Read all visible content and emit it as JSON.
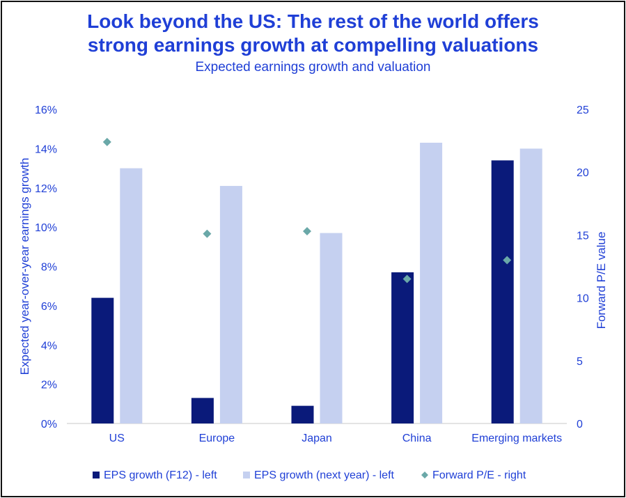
{
  "chart_data": {
    "type": "bar",
    "title_line1": "Look beyond the US: The rest of the world offers",
    "title_line2": "strong earnings growth at compelling valuations",
    "subtitle": "Expected earnings growth and valuation",
    "categories": [
      "US",
      "Europe",
      "Japan",
      "China",
      "Emerging markets"
    ],
    "ylabel_left": "Expected year-over-year earnings growth",
    "ylabel_right": "Forward P/E value",
    "yticks_left": [
      "0%",
      "2%",
      "4%",
      "6%",
      "8%",
      "10%",
      "12%",
      "14%",
      "16%"
    ],
    "yticks_right": [
      "0",
      "5",
      "10",
      "15",
      "20",
      "25"
    ],
    "ylim_left": [
      0,
      16
    ],
    "ylim_right": [
      0,
      25
    ],
    "series": [
      {
        "name": "EPS growth (F12) - left",
        "axis": "left",
        "kind": "bar",
        "values": [
          6.4,
          1.3,
          0.9,
          7.7,
          13.4
        ]
      },
      {
        "name": "EPS growth (next year) - left",
        "axis": "left",
        "kind": "bar",
        "values": [
          13.0,
          12.1,
          9.7,
          14.3,
          14.0
        ]
      },
      {
        "name": "Forward P/E - right",
        "axis": "right",
        "kind": "marker",
        "values": [
          22.4,
          15.1,
          15.3,
          11.5,
          13.0
        ]
      }
    ],
    "legend_position": "bottom",
    "grid": false,
    "colors": {
      "series1": "#0a1a7a",
      "series2": "#c5d0f0",
      "series3": "#6aa8a8",
      "text": "#1f3fd6",
      "axis": "#c8c8c8"
    }
  }
}
